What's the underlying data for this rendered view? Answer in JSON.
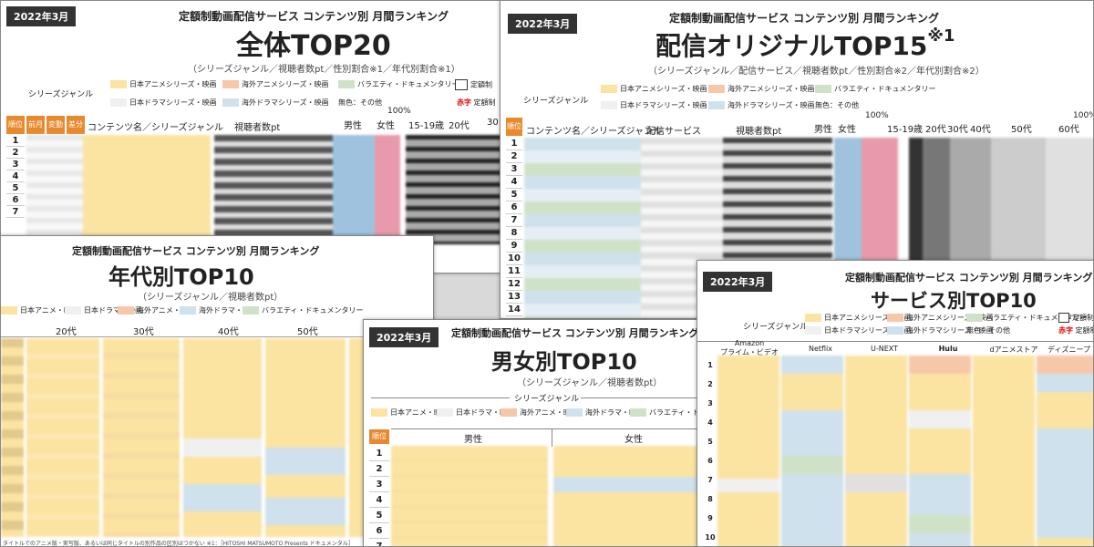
{
  "common": {
    "date_badge": "2022年3月",
    "service_heading": "定額制動画配信サービス コンテンツ別 月間ランキング",
    "series_label": "シリーズジャンル"
  },
  "colors": {
    "anime_jp": "#fbe3a2",
    "drama_jp": "#f0f0f0",
    "anime_foreign": "#f6c8a9",
    "drama_foreign": "#cfe1ec",
    "variety": "#cfe2c8",
    "female_bar": "#e89aaa",
    "male_bar": "#9fc3de",
    "rank_header": "#e8892e"
  },
  "panel_overall": {
    "title": "全体TOP20",
    "subtitle": "（シリーズジャンル／視聴者数pt／性別割合※1／年代別割合※1）",
    "legend": [
      "日本アニメシリーズ・映画",
      "海外アニメシリーズ・映画",
      "バラエティ・ドキュメンタリー",
      "日本ドラマシリーズ・映画",
      "海外ドラマシリーズ・映画",
      "無色：その他"
    ],
    "legend_extra": [
      "定額制",
      "定額制"
    ],
    "legend_red": "赤字",
    "headers": {
      "rank": "順位",
      "prev": "前月",
      "change": "変動",
      "diff": "差分",
      "content": "コンテンツ名／シリーズジャンル",
      "viewers": "視聴者数pt",
      "male": "男性",
      "female": "女性",
      "pct": "100%",
      "age1": "15-19歳",
      "age2": "20代",
      "age3": "30"
    },
    "ranks": [
      "1",
      "2",
      "3",
      "4",
      "5",
      "6",
      "7"
    ]
  },
  "panel_original": {
    "title": "配信オリジナルTOP15",
    "title_mark": "※1",
    "subtitle": "（シリーズジャンル／配信サービス／視聴者数pt／性別割合※2／年代別割合※2）",
    "legend": [
      "日本アニメシリーズ・映画",
      "海外アニメシリーズ・映画",
      "バラエティ・ドキュメンタリー",
      "日本ドラマシリーズ・映画",
      "海外ドラマシリーズ・映画",
      "無色：その他"
    ],
    "headers": {
      "rank": "順位",
      "content": "コンテンツ名／シリーズジャンル",
      "service": "配信サービス",
      "viewers": "視聴者数pt",
      "male": "男性",
      "female": "女性",
      "pct": "100%",
      "age1": "15-19歳",
      "age2": "20代",
      "age3": "30代",
      "age4": "40代",
      "age5": "50代",
      "age6": "60代",
      "pct2": "100%"
    },
    "ranks": [
      "1",
      "2",
      "3",
      "4",
      "5",
      "6",
      "7",
      "8",
      "9",
      "10",
      "11",
      "12",
      "13",
      "14"
    ]
  },
  "panel_age": {
    "title": "年代別TOP10",
    "subtitle": "（シリーズジャンル／視聴者数pt）",
    "legend": [
      "日本アニメ・映画",
      "日本ドラマ・映画",
      "海外アニメ・映画",
      "海外ドラマ・映画",
      "バラエティ・ドキュメンタリー"
    ],
    "cols": [
      "20代",
      "30代",
      "40代",
      "50代"
    ],
    "footnote": "タイトルでのアニメ版・実写版、あるいは同じタイトルの別作品の区別はつかない ※1：［HITOSHI MATSUMOTO Presents ドキュメンタル］"
  },
  "panel_gender": {
    "title": "男女別TOP10",
    "subtitle": "（シリーズジャンル／視聴者数pt）",
    "legend": [
      "日本アニメ・映画",
      "日本ドラマ・映画",
      "海外アニメ・映画",
      "海外ドラマ・映画",
      "バラエティ・ドキュメンタリー"
    ],
    "headers": {
      "rank": "順位",
      "male": "男性",
      "female": "女性"
    },
    "ranks": [
      "1",
      "2",
      "3",
      "4",
      "5",
      "6",
      "7"
    ]
  },
  "panel_service": {
    "title": "サービス別TOP10",
    "legend": [
      "日本アニメシリーズ・映画",
      "海外アニメシリーズ・映画",
      "バラエティ・ドキュメンタリー",
      "日本ドラマシリーズ・映画",
      "海外ドラマシリーズ・映画",
      "無色：その他"
    ],
    "legend_extra": "定額制",
    "legend_red": "赤字",
    "legend_red2": "定額制",
    "services": [
      "Amazon\nプライム・ビデオ",
      "Netflix",
      "U-NEXT",
      "Hulu",
      "dアニメストア",
      "ディズニープ"
    ],
    "ranks": [
      "1",
      "2",
      "3",
      "4",
      "5",
      "6",
      "7",
      "8",
      "9",
      "10"
    ]
  }
}
